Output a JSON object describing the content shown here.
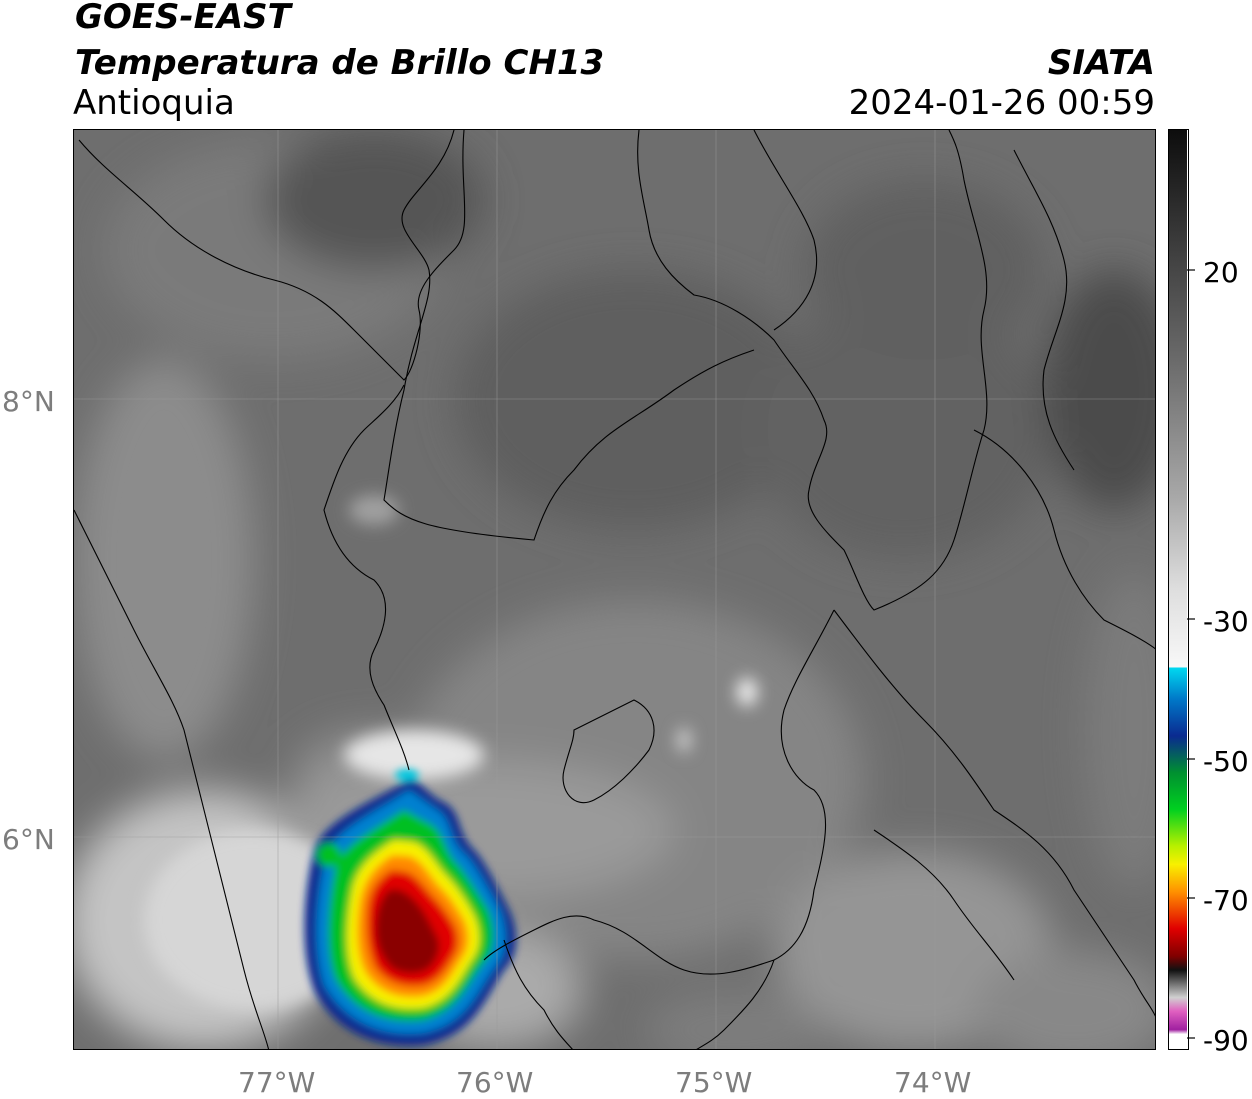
{
  "header": {
    "satellite": "GOES-EAST",
    "product": "Temperatura de Brillo CH13",
    "region": "Antioquia",
    "organization": "SIATA",
    "timestamp": "2024-01-26 00:59"
  },
  "map": {
    "lat_ticks": [
      "8°N",
      "6°N"
    ],
    "lon_ticks": [
      "77°W",
      "76°W",
      "75°W",
      "74°W"
    ]
  },
  "colorbar": {
    "ticks": [
      "20",
      "-30",
      "-50",
      "-70",
      "-90"
    ],
    "range": [
      -90,
      35
    ],
    "colors": {
      "warm_gray_dark": "#1a1a1a",
      "light_white": "#f5f5f5",
      "cyan": "#00d8f0",
      "blue": "#0a2a90",
      "green": "#00c020",
      "yellow": "#f8f000",
      "red": "#e00000",
      "dark_red": "#600000",
      "magenta": "#e040c0",
      "purple": "#901090"
    }
  }
}
